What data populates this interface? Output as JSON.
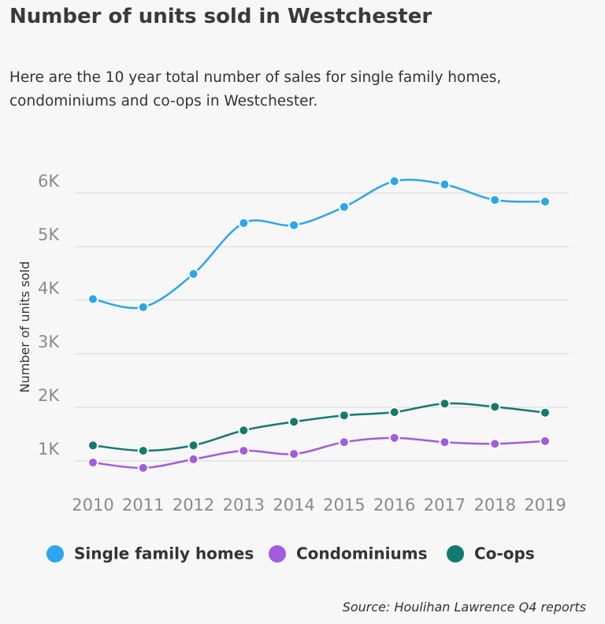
{
  "chart_data": {
    "type": "line",
    "title": "Number of units sold in Westchester",
    "subtitle": "Here are the 10 year total number of sales for single family homes, condominiums and co-ops in Westchester.",
    "y_label": "Number of units sold",
    "source": "Source:  Houlihan Lawrence Q4 reports",
    "categories": [
      "2010",
      "2011",
      "2012",
      "2013",
      "2014",
      "2015",
      "2016",
      "2017",
      "2018",
      "2019"
    ],
    "series": [
      {
        "name": "Single family homes",
        "color": "#2aa5ef",
        "values": [
          4020,
          3870,
          4490,
          5440,
          5400,
          5740,
          6220,
          6160,
          5870,
          5840
        ]
      },
      {
        "name": "Condominiums",
        "color": "#a35be0",
        "values": [
          970,
          870,
          1030,
          1190,
          1130,
          1350,
          1430,
          1350,
          1320,
          1370
        ]
      },
      {
        "name": "Co-ops",
        "color": "#137a6e",
        "values": [
          1290,
          1190,
          1290,
          1570,
          1730,
          1850,
          1910,
          2070,
          2010,
          1900
        ]
      }
    ],
    "ylim": [
      700,
      6300
    ],
    "yticks": [
      {
        "value": 1000,
        "label": "1K"
      },
      {
        "value": 2000,
        "label": "2K"
      },
      {
        "value": 3000,
        "label": "3K"
      },
      {
        "value": 4000,
        "label": "4K"
      },
      {
        "value": 5000,
        "label": "5K"
      },
      {
        "value": 6000,
        "label": "6K"
      }
    ],
    "grid": true
  }
}
